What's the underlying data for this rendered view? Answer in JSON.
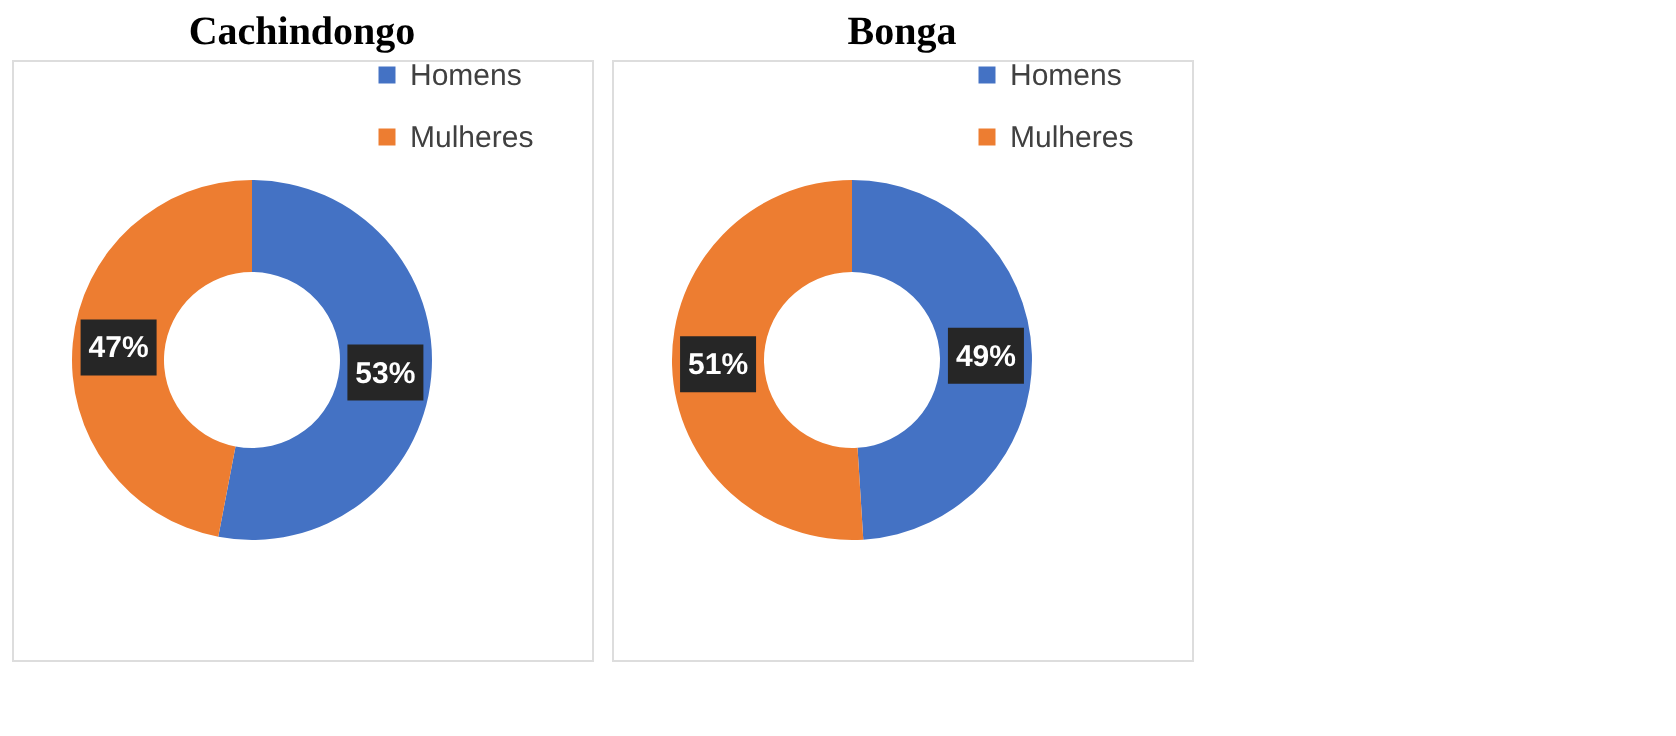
{
  "chart_data": [
    {
      "type": "donut",
      "title": "Cachindongo",
      "categories": [
        "Homens",
        "Mulheres"
      ],
      "values": [
        53,
        47
      ],
      "colors": [
        "#4472c4",
        "#ed7d31"
      ],
      "value_labels": [
        "53%",
        "47%"
      ],
      "legend": "right"
    },
    {
      "type": "donut",
      "title": "Bonga",
      "categories": [
        "Homens",
        "Mulheres"
      ],
      "values": [
        49,
        51
      ],
      "colors": [
        "#4472c4",
        "#ed7d31"
      ],
      "value_labels": [
        "49%",
        "51%"
      ],
      "legend": "right"
    }
  ]
}
